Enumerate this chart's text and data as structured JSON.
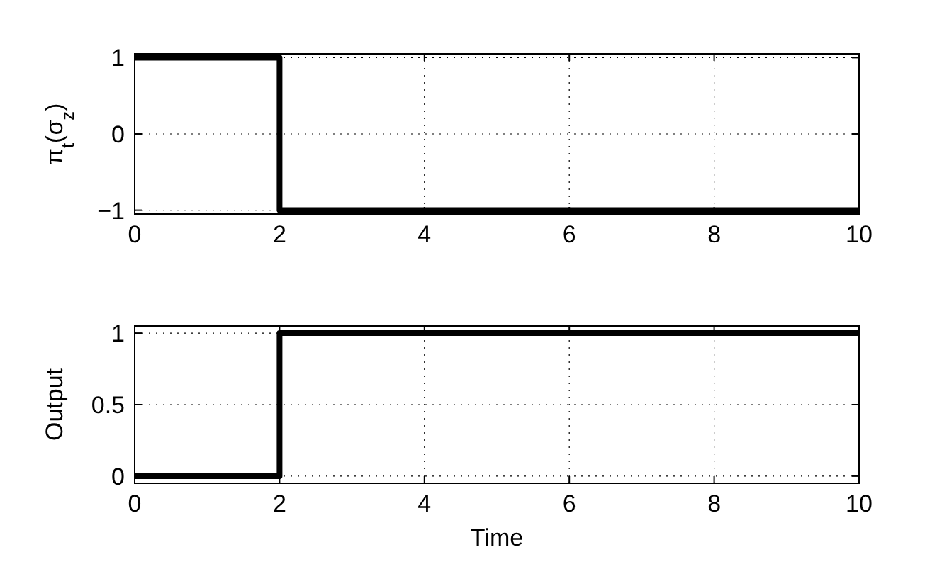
{
  "chart_data": [
    {
      "type": "step",
      "x": [
        0,
        2,
        10
      ],
      "values": [
        1,
        -1,
        -1
      ],
      "color": "#000000",
      "xlim": [
        0,
        10
      ],
      "xticks": [
        0,
        2,
        4,
        6,
        8,
        10
      ],
      "ylim": [
        -1.05,
        1.05
      ],
      "yticks": [
        -1,
        0,
        1
      ],
      "ylabel": "π$_{t}$(σ$_{z}$)",
      "grid": true,
      "line_style": "solid"
    },
    {
      "type": "step",
      "x": [
        0,
        2,
        10
      ],
      "values": [
        0,
        1,
        1
      ],
      "color": "#000000",
      "xlim": [
        0,
        10
      ],
      "xticks": [
        0,
        2,
        4,
        6,
        8,
        10
      ],
      "ylim": [
        -0.05,
        1.05
      ],
      "yticks": [
        0,
        0.5,
        1
      ],
      "ylabel": "Output",
      "xlabel": "Time",
      "grid": true,
      "line_style": "solid"
    }
  ]
}
